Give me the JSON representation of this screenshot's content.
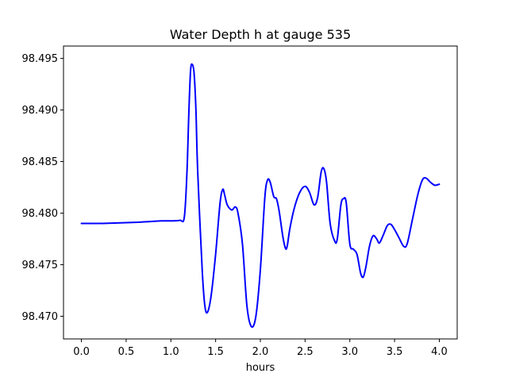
{
  "chart_data": {
    "type": "line",
    "title": "Water Depth h at gauge 535",
    "xlabel": "hours",
    "ylabel": "",
    "xlim": [
      -0.2,
      4.2
    ],
    "ylim": [
      98.4678,
      98.4962
    ],
    "x_ticks": [
      0.0,
      0.5,
      1.0,
      1.5,
      2.0,
      2.5,
      3.0,
      3.5,
      4.0
    ],
    "x_tick_labels": [
      "0.0",
      "0.5",
      "1.0",
      "1.5",
      "2.0",
      "2.5",
      "3.0",
      "3.5",
      "4.0"
    ],
    "y_ticks": [
      98.47,
      98.475,
      98.48,
      98.485,
      98.49,
      98.495
    ],
    "y_tick_labels": [
      "98.470",
      "98.475",
      "98.480",
      "98.485",
      "98.490",
      "98.495"
    ],
    "grid": false,
    "legend": "none",
    "series": [
      {
        "color": "#0000ff",
        "x": [
          0.0,
          0.2,
          0.4,
          0.6,
          0.7,
          0.8,
          0.9,
          1.0,
          1.1,
          1.15,
          1.18,
          1.2,
          1.22,
          1.24,
          1.26,
          1.28,
          1.3,
          1.35,
          1.38,
          1.41,
          1.45,
          1.5,
          1.55,
          1.58,
          1.6,
          1.63,
          1.68,
          1.72,
          1.75,
          1.8,
          1.85,
          1.9,
          1.95,
          2.0,
          2.05,
          2.08,
          2.11,
          2.15,
          2.18,
          2.21,
          2.25,
          2.28,
          2.3,
          2.33,
          2.38,
          2.44,
          2.5,
          2.55,
          2.6,
          2.64,
          2.68,
          2.71,
          2.74,
          2.78,
          2.83,
          2.86,
          2.9,
          2.93,
          2.96,
          3.0,
          3.04,
          3.08,
          3.12,
          3.15,
          3.18,
          3.22,
          3.26,
          3.3,
          3.33,
          3.37,
          3.42,
          3.46,
          3.5,
          3.55,
          3.6,
          3.64,
          3.7,
          3.76,
          3.81,
          3.85,
          3.9,
          3.95,
          4.0
        ],
        "y": [
          98.479,
          98.479,
          98.47905,
          98.4791,
          98.47915,
          98.4792,
          98.47925,
          98.47925,
          98.4793,
          98.4796,
          98.484,
          98.4895,
          98.4938,
          98.4944,
          98.4935,
          98.49,
          98.484,
          98.4745,
          98.471,
          98.4704,
          98.472,
          98.476,
          98.481,
          98.4823,
          98.4818,
          98.4808,
          98.4803,
          98.4806,
          98.48,
          98.477,
          98.471,
          98.469,
          98.47,
          98.4745,
          98.4815,
          98.4832,
          98.483,
          98.4816,
          98.4814,
          98.4802,
          98.4778,
          98.4766,
          98.4768,
          98.4785,
          98.4805,
          98.482,
          98.4826,
          98.482,
          98.4808,
          98.4815,
          98.484,
          98.4843,
          98.483,
          98.479,
          98.4773,
          98.4775,
          98.4808,
          98.4814,
          98.481,
          98.477,
          98.4765,
          98.476,
          98.4742,
          98.4738,
          98.4748,
          98.4768,
          98.4778,
          98.4775,
          98.4771,
          98.4778,
          98.4788,
          98.4789,
          98.4784,
          98.4776,
          98.4768,
          98.477,
          98.4794,
          98.4818,
          98.4832,
          98.4834,
          98.483,
          98.4827,
          98.4828
        ]
      }
    ]
  }
}
